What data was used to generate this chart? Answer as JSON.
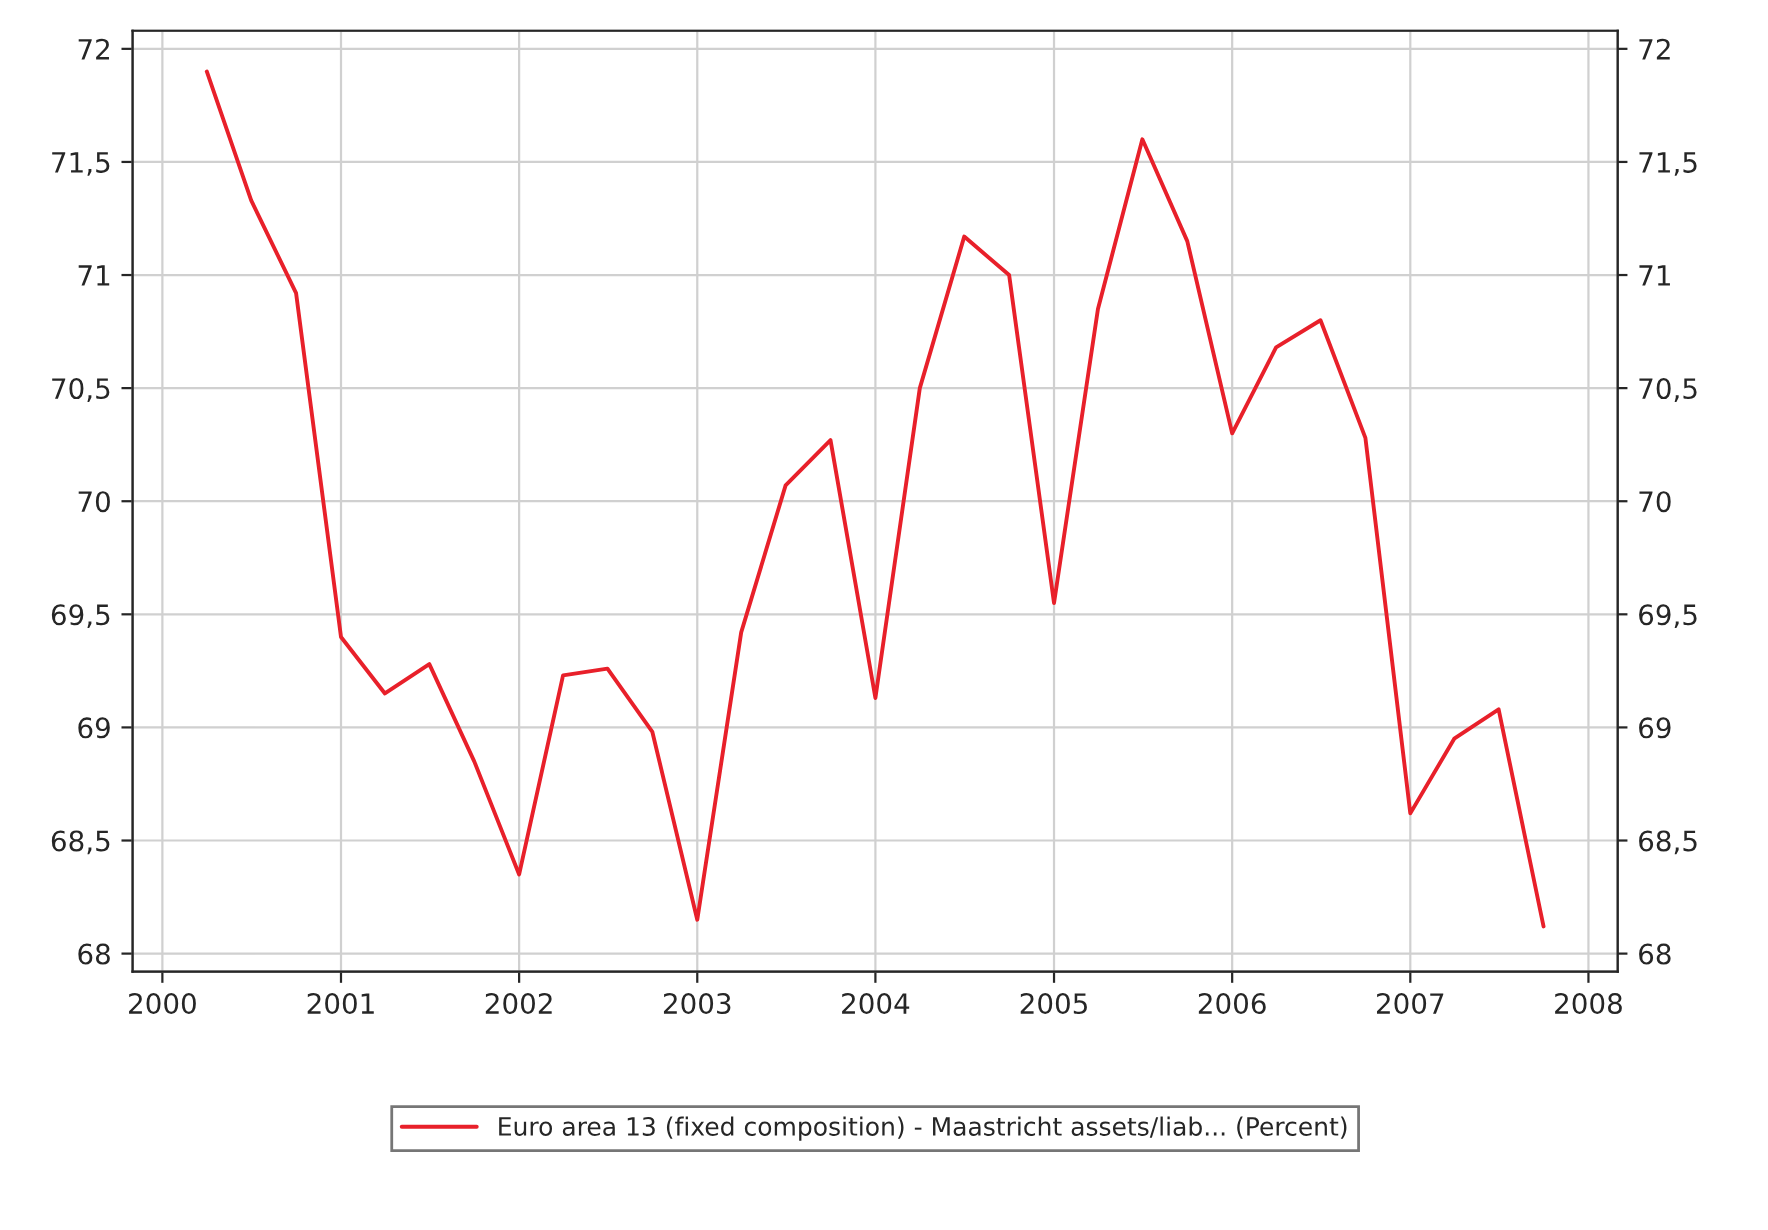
{
  "chart_data": {
    "type": "line",
    "x": [
      "2000-04",
      "2000-07",
      "2000-10",
      "2001-01",
      "2001-04",
      "2001-07",
      "2001-10",
      "2002-01",
      "2002-04",
      "2002-07",
      "2002-10",
      "2003-01",
      "2003-04",
      "2003-07",
      "2003-10",
      "2004-01",
      "2004-04",
      "2004-07",
      "2004-10",
      "2005-01",
      "2005-04",
      "2005-07",
      "2005-10",
      "2006-01",
      "2006-04",
      "2006-07",
      "2006-10",
      "2007-01",
      "2007-04",
      "2007-07",
      "2007-10"
    ],
    "series": [
      {
        "name": "Euro area 13 (fixed composition) - Maastricht assets/liab... (Percent)",
        "color": "#e8202a",
        "values": [
          71.9,
          71.33,
          70.92,
          69.4,
          69.15,
          69.28,
          68.85,
          68.35,
          69.23,
          69.26,
          68.98,
          68.15,
          69.42,
          70.07,
          70.27,
          69.13,
          70.5,
          71.17,
          71.0,
          69.55,
          70.85,
          71.6,
          71.15,
          70.3,
          70.68,
          70.8,
          70.28,
          68.62,
          68.95,
          69.08,
          68.12
        ]
      }
    ],
    "xlim": [
      "1999-11",
      "2008-03"
    ],
    "xticks": [
      {
        "value": "2000-01",
        "label": "2000"
      },
      {
        "value": "2001-01",
        "label": "2001"
      },
      {
        "value": "2002-01",
        "label": "2002"
      },
      {
        "value": "2003-01",
        "label": "2003"
      },
      {
        "value": "2004-01",
        "label": "2004"
      },
      {
        "value": "2005-01",
        "label": "2005"
      },
      {
        "value": "2006-01",
        "label": "2006"
      },
      {
        "value": "2007-01",
        "label": "2007"
      },
      {
        "value": "2008-01",
        "label": "2008"
      }
    ],
    "ylim": [
      67.92,
      72.08
    ],
    "yticks": [
      68,
      {
        "value": 68.5,
        "label": "68,5"
      },
      69,
      {
        "value": 69.5,
        "label": "69,5"
      },
      70,
      {
        "value": 70.5,
        "label": "70,5"
      },
      71,
      {
        "value": 71.5,
        "label": "71,5"
      },
      72
    ],
    "y2lim": [
      67.92,
      72.08
    ],
    "y2ticks": [
      68,
      {
        "value": 68.5,
        "label": "68,5"
      },
      69,
      {
        "value": 69.5,
        "label": "69,5"
      },
      70,
      {
        "value": 70.5,
        "label": "70,5"
      },
      71,
      {
        "value": 71.5,
        "label": "71,5"
      },
      72
    ],
    "grid": true,
    "legend": "bottom",
    "marker": "none",
    "line_style": "solid"
  }
}
